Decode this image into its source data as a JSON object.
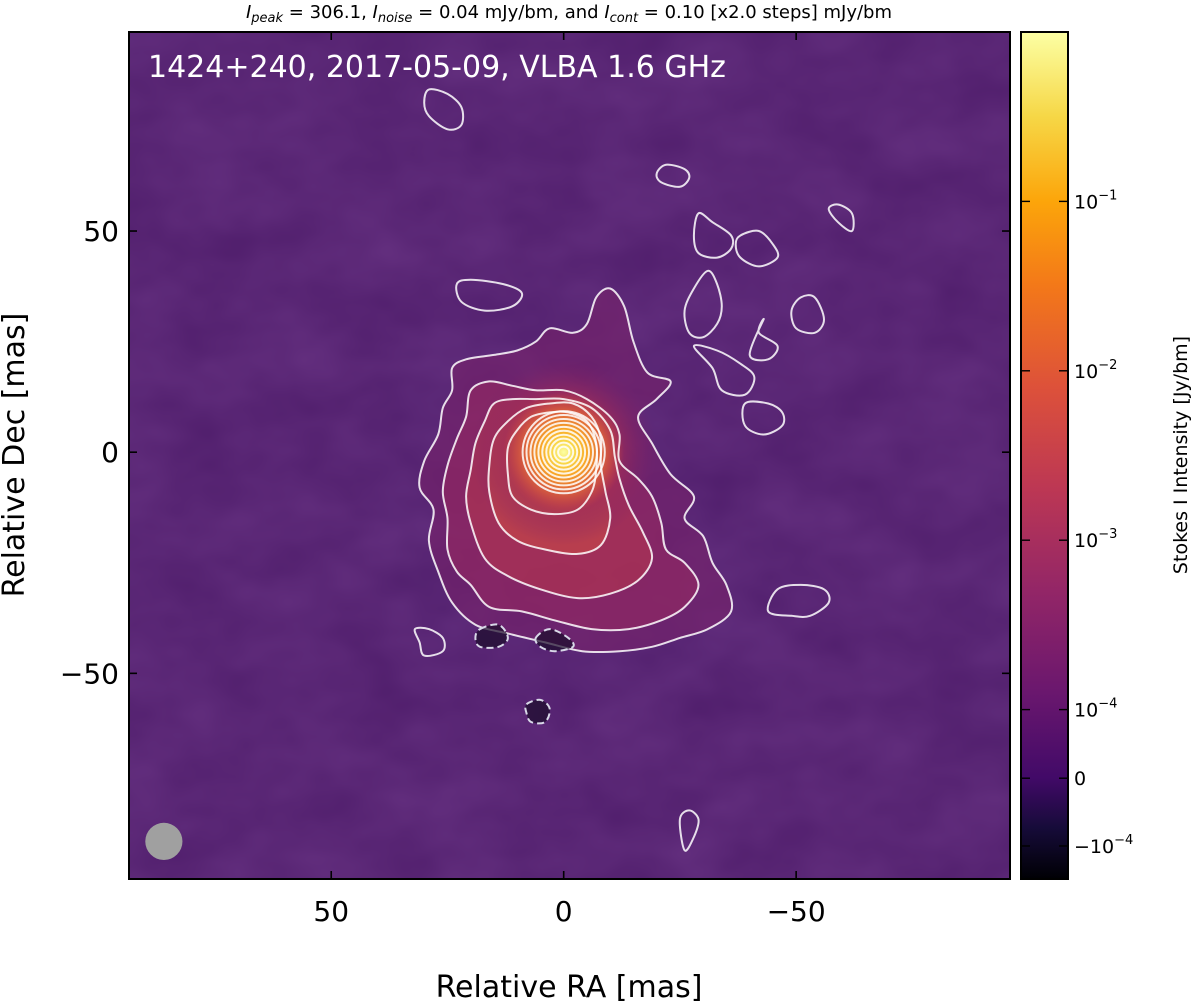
{
  "chart_data": {
    "type": "heatmap",
    "title": {
      "peak_symbol": "I",
      "peak_sub": "peak",
      "peak_value": "306.1",
      "noise_symbol": "I",
      "noise_sub": "noise",
      "noise_value": "0.04 mJy/bm",
      "cont_symbol": "I",
      "cont_sub": "cont",
      "cont_value": "0.10 [x2.0 steps] mJy/bm",
      "sep_eq": " = ",
      "sep_comma": ", ",
      "sep_and": ", and "
    },
    "annotation": "1424+240, 2017-05-09, VLBA 1.6 GHz",
    "xlabel": "Relative RA [mas]",
    "ylabel": "Relative Dec [mas]",
    "xlim": [
      93.5,
      -96
    ],
    "ylim": [
      -96.5,
      95
    ],
    "x_ticks": [
      {
        "value": 50,
        "label": "50"
      },
      {
        "value": 0,
        "label": "0"
      },
      {
        "value": -50,
        "label": "−50"
      }
    ],
    "y_ticks": [
      {
        "value": 50,
        "label": "50"
      },
      {
        "value": 0,
        "label": "0"
      },
      {
        "value": -50,
        "label": "−50"
      }
    ],
    "colorbar": {
      "label": "Stokes I Intensity [Jy/bm]",
      "colormap": "inferno",
      "ticks": [
        {
          "label": "10",
          "exp": "−1",
          "frac": 0.8
        },
        {
          "label": "10",
          "exp": "−2",
          "frac": 0.6
        },
        {
          "label": "10",
          "exp": "−3",
          "frac": 0.4
        },
        {
          "label": "10",
          "exp": "−4",
          "frac": 0.2
        },
        {
          "label": "0",
          "exp": "",
          "frac": 0.119
        },
        {
          "label": "−10",
          "exp": "−4",
          "frac": 0.039
        }
      ]
    },
    "beam": {
      "x": 86,
      "y": -88,
      "diameter_mas": 8
    },
    "contour_peak": {
      "x": 0,
      "y": 0,
      "rings": 10
    },
    "colors": {
      "background": "#4f1d6b",
      "contour": "#ffffff",
      "negative_contour": "#d8d8e8",
      "beam": "#a0a0a0",
      "core_peak": "#fcffa4",
      "core_mid": "#f9a826",
      "core_outer": "#d04a3e"
    },
    "positive_contours": [
      {
        "level": "0.10 mJy/bm",
        "points": [
          [
            24,
            -34
          ],
          [
            19,
            -39
          ],
          [
            12,
            -41
          ],
          [
            4,
            -43
          ],
          [
            -4,
            -45
          ],
          [
            -12,
            -45
          ],
          [
            -19,
            -44
          ],
          [
            -25,
            -42
          ],
          [
            -31,
            -40
          ],
          [
            -36,
            -36
          ],
          [
            -35,
            -30
          ],
          [
            -32,
            -25
          ],
          [
            -30,
            -19
          ],
          [
            -26,
            -15
          ],
          [
            -28,
            -10
          ],
          [
            -23,
            -5
          ],
          [
            -19,
            2
          ],
          [
            -16,
            8
          ],
          [
            -20,
            12
          ],
          [
            -23,
            16
          ],
          [
            -18,
            18
          ],
          [
            -15,
            25
          ],
          [
            -13,
            33
          ],
          [
            -10,
            37
          ],
          [
            -7,
            35
          ],
          [
            -5,
            29
          ],
          [
            -2,
            27
          ],
          [
            3,
            28
          ],
          [
            6,
            25
          ],
          [
            10,
            23
          ],
          [
            15,
            22
          ],
          [
            21,
            21
          ],
          [
            24,
            19
          ],
          [
            24,
            14
          ],
          [
            26,
            10
          ],
          [
            27,
            4
          ],
          [
            30,
            -2
          ],
          [
            31,
            -8
          ],
          [
            28,
            -13
          ],
          [
            29,
            -20
          ],
          [
            27,
            -27
          ]
        ]
      },
      {
        "level": "0.20 mJy/bm",
        "points": [
          [
            20,
            -30
          ],
          [
            16,
            -35
          ],
          [
            9,
            -36
          ],
          [
            2,
            -38
          ],
          [
            -6,
            -40
          ],
          [
            -14,
            -40
          ],
          [
            -21,
            -38
          ],
          [
            -26,
            -35
          ],
          [
            -29,
            -30
          ],
          [
            -26,
            -25
          ],
          [
            -22,
            -22
          ],
          [
            -21,
            -16
          ],
          [
            -19,
            -10
          ],
          [
            -16,
            -6
          ],
          [
            -12,
            -2
          ],
          [
            -12,
            4
          ],
          [
            -10,
            8
          ],
          [
            -5,
            12
          ],
          [
            0,
            14
          ],
          [
            6,
            14
          ],
          [
            11,
            15
          ],
          [
            16,
            16
          ],
          [
            20,
            14
          ],
          [
            21,
            8
          ],
          [
            23,
            3
          ],
          [
            25,
            -3
          ],
          [
            26,
            -9
          ],
          [
            25,
            -15
          ],
          [
            25,
            -22
          ],
          [
            23,
            -27
          ]
        ]
      },
      {
        "level": "0.40 mJy/bm",
        "points": [
          [
            17,
            -24
          ],
          [
            12,
            -28
          ],
          [
            5,
            -31
          ],
          [
            -3,
            -33
          ],
          [
            -10,
            -32
          ],
          [
            -16,
            -29
          ],
          [
            -19,
            -24
          ],
          [
            -17,
            -18
          ],
          [
            -14,
            -12
          ],
          [
            -12,
            -6
          ],
          [
            -11,
            -1
          ],
          [
            -10,
            5
          ],
          [
            -6,
            10
          ],
          [
            0,
            12
          ],
          [
            6,
            12
          ],
          [
            11,
            12
          ],
          [
            15,
            11
          ],
          [
            17,
            7
          ],
          [
            19,
            2
          ],
          [
            20,
            -4
          ],
          [
            21,
            -10
          ],
          [
            20,
            -16
          ]
        ]
      },
      {
        "level": "0.80 mJy/bm",
        "points": [
          [
            14,
            -16
          ],
          [
            10,
            -20
          ],
          [
            4,
            -22
          ],
          [
            -3,
            -23
          ],
          [
            -8,
            -21
          ],
          [
            -10,
            -15
          ],
          [
            -9,
            -9
          ],
          [
            -8,
            -3
          ],
          [
            -8,
            3
          ],
          [
            -6,
            8
          ],
          [
            -2,
            11
          ],
          [
            3,
            11
          ],
          [
            8,
            10
          ],
          [
            12,
            7
          ],
          [
            15,
            3
          ],
          [
            16,
            -3
          ],
          [
            16,
            -9
          ]
        ]
      },
      {
        "level": "1.60 mJy/bm",
        "points": [
          [
            11,
            -10
          ],
          [
            7,
            -13
          ],
          [
            2,
            -14
          ],
          [
            -3,
            -13
          ],
          [
            -6,
            -9
          ],
          [
            -7,
            -4
          ],
          [
            -7,
            2
          ],
          [
            -5,
            7
          ],
          [
            -1,
            9
          ],
          [
            3,
            9
          ],
          [
            7,
            8
          ],
          [
            10,
            5
          ],
          [
            12,
            1
          ],
          [
            12,
            -5
          ]
        ]
      }
    ],
    "contour_islands": [
      {
        "points": [
          [
            29,
            82
          ],
          [
            30,
            79
          ],
          [
            29,
            76
          ],
          [
            25,
            73
          ],
          [
            22,
            74
          ],
          [
            22,
            78
          ],
          [
            25,
            81
          ]
        ]
      },
      {
        "points": [
          [
            -20,
            63
          ],
          [
            -21,
            61
          ],
          [
            -25,
            60
          ],
          [
            -27,
            62
          ],
          [
            -26,
            64
          ],
          [
            -22,
            65
          ]
        ]
      },
      {
        "points": [
          [
            -29,
            54
          ],
          [
            -32,
            52
          ],
          [
            -36,
            49
          ],
          [
            -36,
            46
          ],
          [
            -33,
            44
          ],
          [
            -29,
            45
          ],
          [
            -28,
            49
          ]
        ]
      },
      {
        "points": [
          [
            -38,
            49
          ],
          [
            -42,
            50
          ],
          [
            -45,
            47
          ],
          [
            -46,
            44
          ],
          [
            -42,
            42
          ],
          [
            -38,
            44
          ],
          [
            -37,
            47
          ]
        ]
      },
      {
        "points": [
          [
            -57,
            55
          ],
          [
            -59,
            52
          ],
          [
            -62,
            50
          ],
          [
            -62,
            54
          ],
          [
            -59,
            56
          ]
        ]
      },
      {
        "points": [
          [
            23,
            38
          ],
          [
            20,
            39
          ],
          [
            13,
            38
          ],
          [
            9,
            36
          ],
          [
            11,
            33
          ],
          [
            17,
            32
          ],
          [
            22,
            34
          ]
        ]
      },
      {
        "points": [
          [
            -31,
            41
          ],
          [
            -33,
            38
          ],
          [
            -34,
            33
          ],
          [
            -33,
            29
          ],
          [
            -30,
            26
          ],
          [
            -27,
            27
          ],
          [
            -26,
            32
          ],
          [
            -28,
            37
          ]
        ]
      },
      {
        "points": [
          [
            -54,
            35
          ],
          [
            -56,
            30
          ],
          [
            -54,
            27
          ],
          [
            -50,
            28
          ],
          [
            -49,
            32
          ],
          [
            -51,
            35
          ]
        ]
      },
      {
        "points": [
          [
            -28,
            24
          ],
          [
            -32,
            19
          ],
          [
            -34,
            14
          ],
          [
            -39,
            13
          ],
          [
            -41,
            17
          ],
          [
            -38,
            20
          ],
          [
            -33,
            23
          ]
        ]
      },
      {
        "points": [
          [
            -43,
            30
          ],
          [
            -42,
            27
          ],
          [
            -46,
            24
          ],
          [
            -44,
            21
          ],
          [
            -40,
            22
          ]
        ]
      },
      {
        "points": [
          [
            -39,
            11
          ],
          [
            -39,
            6
          ],
          [
            -43,
            4
          ],
          [
            -47,
            6
          ],
          [
            -47,
            9
          ],
          [
            -44,
            11
          ]
        ]
      },
      {
        "points": [
          [
            -44,
            -36
          ],
          [
            -49,
            -37
          ],
          [
            -53,
            -37
          ],
          [
            -57,
            -34
          ],
          [
            -56,
            -31
          ],
          [
            -51,
            -30
          ],
          [
            -46,
            -31
          ]
        ]
      },
      {
        "points": [
          [
            -26,
            -90
          ],
          [
            -28,
            -87
          ],
          [
            -29,
            -83
          ],
          [
            -27,
            -81
          ],
          [
            -25,
            -83
          ]
        ]
      },
      {
        "points": [
          [
            32,
            -40
          ],
          [
            31,
            -43
          ],
          [
            30,
            -46
          ],
          [
            26,
            -45
          ],
          [
            26,
            -42
          ],
          [
            29,
            -40
          ]
        ]
      }
    ],
    "negative_contours": [
      {
        "points": [
          [
            18,
            -40
          ],
          [
            14,
            -39
          ],
          [
            12,
            -42
          ],
          [
            14,
            -44
          ],
          [
            18,
            -44
          ],
          [
            19,
            -42
          ]
        ]
      },
      {
        "points": [
          [
            6,
            -42
          ],
          [
            3,
            -40
          ],
          [
            -1,
            -42
          ],
          [
            -2,
            -44
          ],
          [
            2,
            -45
          ],
          [
            5,
            -44
          ]
        ]
      },
      {
        "points": [
          [
            8,
            -57
          ],
          [
            5,
            -56
          ],
          [
            3,
            -58
          ],
          [
            4,
            -61
          ],
          [
            7,
            -61
          ],
          [
            8,
            -59
          ]
        ]
      }
    ]
  }
}
